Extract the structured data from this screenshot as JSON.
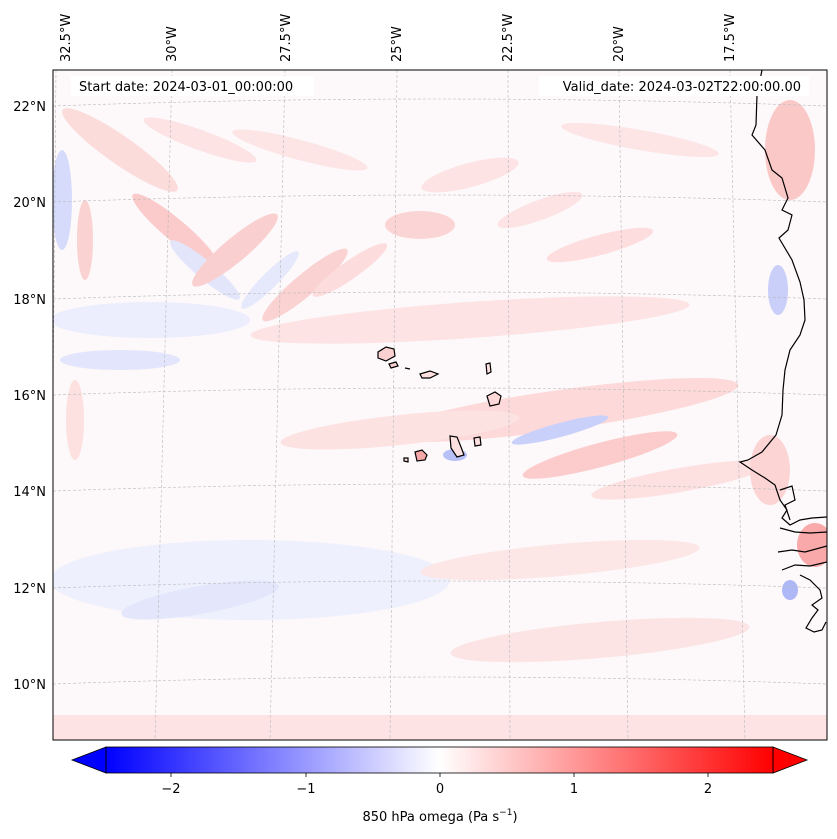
{
  "map": {
    "start_label": "Start date: 2024-03-01_00:00:00",
    "valid_label": "Valid_date: 2024-03-02T22:00:00.00",
    "lon_labels": [
      "32.5°W",
      "30°W",
      "27.5°W",
      "25°W",
      "22.5°W",
      "20°W",
      "17.5°W"
    ],
    "lat_labels": [
      "22°N",
      "20°N",
      "18°N",
      "16°N",
      "14°N",
      "12°N",
      "10°N"
    ],
    "gridlines": true,
    "coastline_color": "#000000"
  },
  "colorbar": {
    "label_main": "850 hPa omega (Pa s",
    "label_sup": "−1",
    "label_end": ")",
    "ticks": [
      "−2",
      "−1",
      "0",
      "1",
      "2"
    ],
    "vmin": -2.6,
    "vmax": 2.6,
    "extend": "both",
    "colormap": "bwr",
    "color_min": "#0000ff",
    "color_mid": "#ffffff",
    "color_max": "#ff0000"
  }
}
